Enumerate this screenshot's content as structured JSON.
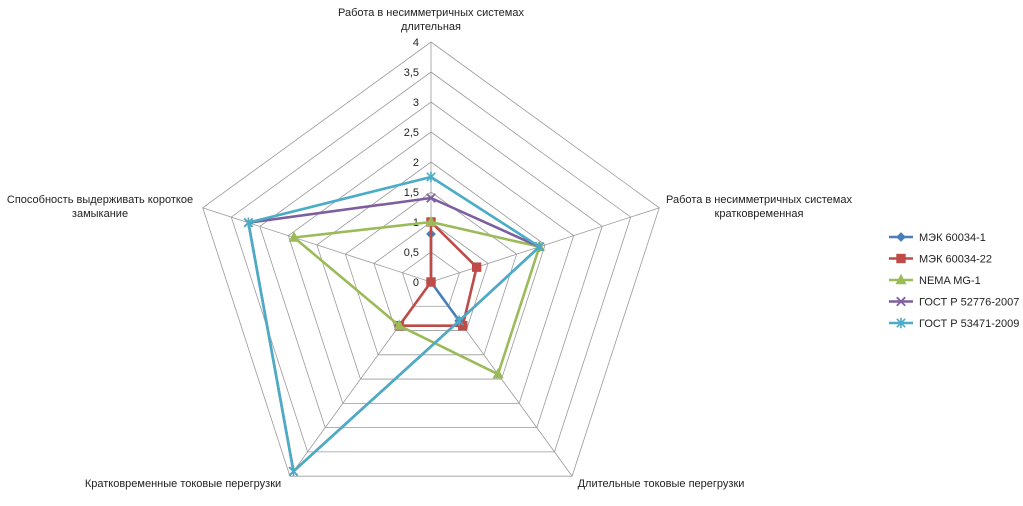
{
  "chart_data": {
    "type": "radar",
    "axes": [
      [
        "Работа в несимметричных системах",
        "длительная"
      ],
      [
        "Работа в несимметричных системах",
        "кратковременная"
      ],
      [
        "Длительные токовые перегрузки"
      ],
      [
        "Кратковременные токовые перегрузки"
      ],
      [
        "Способность выдерживать короткое",
        "замыкание"
      ]
    ],
    "r_range": [
      0,
      4
    ],
    "r_ticks": [
      "0",
      "0,5",
      "1",
      "1,5",
      "2",
      "2,5",
      "3",
      "3,5",
      "4"
    ],
    "grid": true,
    "legend_position": "right",
    "series": [
      {
        "name": "МЭК 60034-1",
        "color": "#4A7EBB",
        "marker": "diamond",
        "values": [
          0.8,
          0,
          0.8,
          0,
          0
        ]
      },
      {
        "name": "МЭК 60034-22",
        "color": "#BE4B48",
        "marker": "square",
        "values": [
          1,
          0.8,
          0.9,
          0.9,
          0
        ]
      },
      {
        "name": "NEMA MG-1",
        "color": "#9BBB59",
        "marker": "triangle",
        "values": [
          1,
          1.9,
          1.9,
          0.9,
          2.4
        ]
      },
      {
        "name": "ГОСТ Р 52776-2007",
        "color": "#7D5FA0",
        "marker": "x",
        "values": [
          1.4,
          1.9,
          0.8,
          3.9,
          3.2
        ]
      },
      {
        "name": "ГОСТ Р 53471-2009",
        "color": "#4BACC6",
        "marker": "star",
        "values": [
          1.75,
          1.9,
          0.8,
          3.9,
          3.2
        ]
      }
    ]
  }
}
